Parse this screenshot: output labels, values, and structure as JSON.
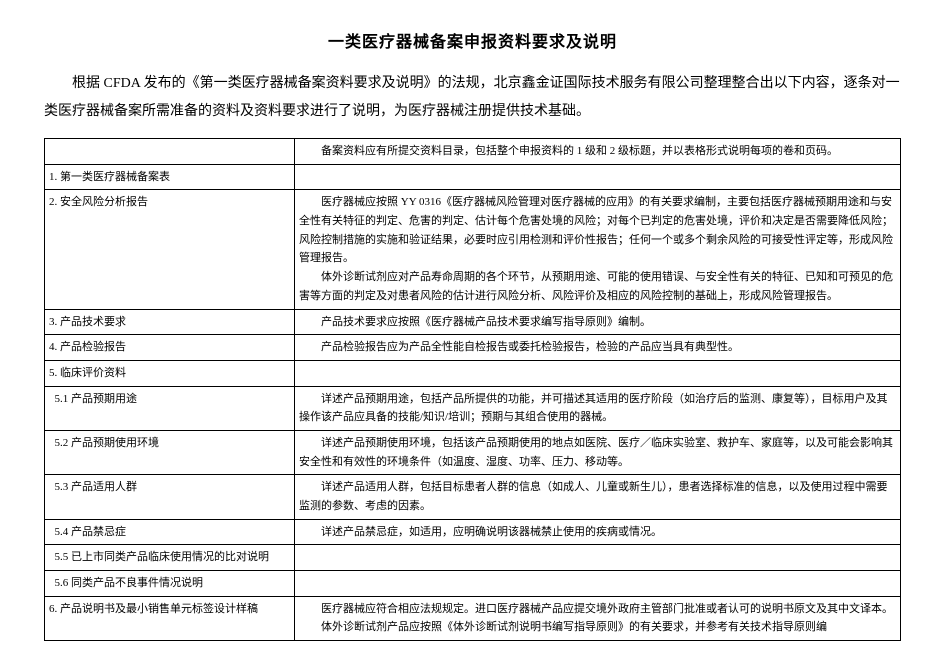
{
  "doc": {
    "title": "一类医疗器械备案申报资料要求及说明",
    "intro": "根据 CFDA 发布的《第一类医疗器械备案资料要求及说明》的法规，北京鑫金证国际技术服务有限公司整理整合出以下内容，逐条对一类医疗器械备案所需准备的资料及资料要求进行了说明，为医疗器械注册提供技术基础。"
  },
  "table": {
    "rows": [
      {
        "left": "",
        "right_single": "备案资料应有所提交资料目录，包括整个申报资料的 1 级和 2 级标题，并以表格形式说明每项的卷和页码。"
      },
      {
        "left": "1. 第一类医疗器械备案表",
        "right_single": ""
      },
      {
        "left": "2. 安全风险分析报告",
        "right_multi": [
          "医疗器械应按照 YY 0316《医疗器械风险管理对医疗器械的应用》的有关要求编制，主要包括医疗器械预期用途和与安全性有关特征的判定、危害的判定、估计每个危害处境的风险；对每个已判定的危害处境，评价和决定是否需要降低风险；风险控制措施的实施和验证结果，必要时应引用检测和评价性报告；任何一个或多个剩余风险的可接受性评定等，形成风险管理报告。",
          "体外诊断试剂应对产品寿命周期的各个环节，从预期用途、可能的使用错误、与安全性有关的特征、已知和可预见的危害等方面的判定及对患者风险的估计进行风险分析、风险评价及相应的风险控制的基础上，形成风险管理报告。"
        ]
      },
      {
        "left": "3. 产品技术要求",
        "right_single": "产品技术要求应按照《医疗器械产品技术要求编写指导原则》编制。"
      },
      {
        "left": "4. 产品检验报告",
        "right_single": "产品检验报告应为产品全性能自检报告或委托检验报告，检验的产品应当具有典型性。"
      },
      {
        "left": "5. 临床评价资料",
        "right_single": ""
      },
      {
        "left": "  5.1 产品预期用途",
        "indent": true,
        "right_single": "详述产品预期用途，包括产品所提供的功能，并可描述其适用的医疗阶段（如治疗后的监测、康复等），目标用户及其操作该产品应具备的技能/知识/培训；预期与其组合使用的器械。"
      },
      {
        "left": "  5.2 产品预期使用环境",
        "indent": true,
        "right_single": "详述产品预期使用环境，包括该产品预期使用的地点如医院、医疗／临床实验室、救护车、家庭等，以及可能会影响其安全性和有效性的环境条件（如温度、湿度、功率、压力、移动等。"
      },
      {
        "left": "  5.3 产品适用人群",
        "indent": true,
        "right_single": "详述产品适用人群，包括目标患者人群的信息（如成人、儿童或新生儿），患者选择标准的信息，以及使用过程中需要监测的参数、考虑的因素。"
      },
      {
        "left": "  5.4 产品禁忌症",
        "indent": true,
        "right_single": "详述产品禁忌症，如适用，应明确说明该器械禁止使用的疾病或情况。"
      },
      {
        "left": "  5.5 已上市同类产品临床使用情况的比对说明",
        "indent": true,
        "right_single": ""
      },
      {
        "left": "  5.6 同类产品不良事件情况说明",
        "indent": true,
        "right_single": ""
      },
      {
        "left": "6. 产品说明书及最小销售单元标签设计样稿",
        "right_multi": [
          "医疗器械应符合相应法规规定。进口医疗器械产品应提交境外政府主管部门批准或者认可的说明书原文及其中文译本。",
          "体外诊断试剂产品应按照《体外诊断试剂说明书编写指导原则》的有关要求，并参考有关技术指导原则编"
        ]
      }
    ]
  }
}
